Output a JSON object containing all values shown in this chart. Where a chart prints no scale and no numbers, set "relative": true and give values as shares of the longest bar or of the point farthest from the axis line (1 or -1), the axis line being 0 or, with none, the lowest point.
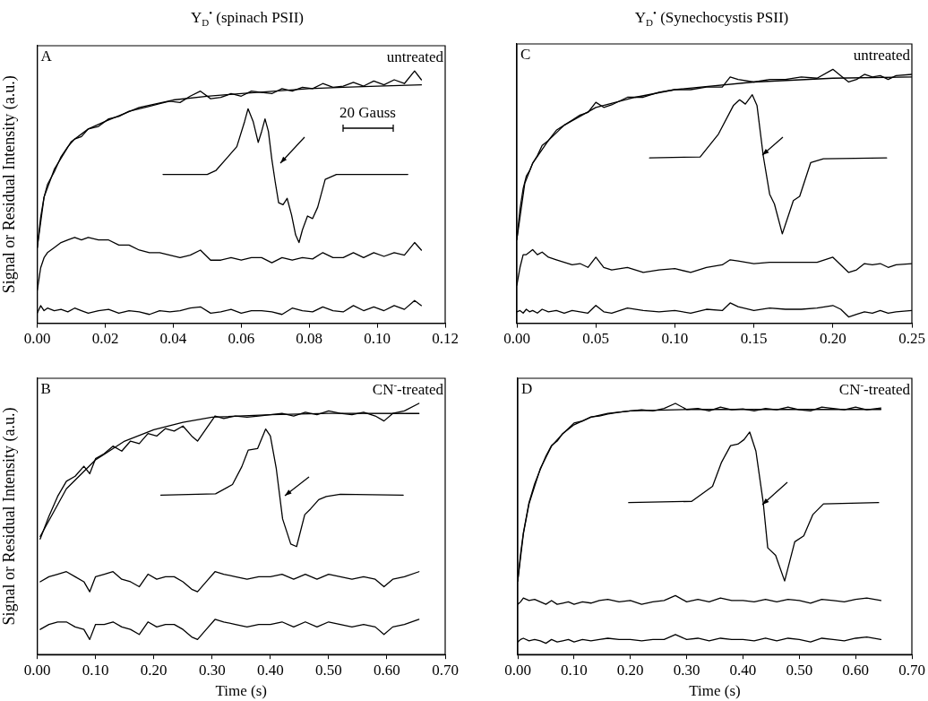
{
  "chart_data": [
    {
      "type": "line",
      "title": "Y$_{D}$$^{•}$ (spinach PSII)",
      "ylabel": "Signal or Residual Intensity (a.u.)",
      "relative": true,
      "marker": "none",
      "xlim": [
        0,
        0.12
      ],
      "xticks": [
        {
          "value": 0,
          "label": "0.00"
        },
        {
          "value": 0.02,
          "label": "0.02"
        },
        {
          "value": 0.04,
          "label": "0.04"
        },
        {
          "value": 0.06,
          "label": "0.06"
        },
        {
          "value": 0.08,
          "label": "0.08"
        },
        {
          "value": 0.1,
          "label": "0.10"
        },
        {
          "value": 0.12,
          "label": "0.12"
        }
      ],
      "annotations": [
        "A",
        "untreated",
        "20 Gauss"
      ],
      "series": [
        {
          "color": "#000000",
          "x": [
            0,
            0.001,
            0.002,
            0.003,
            0.005,
            0.007,
            0.009,
            0.011,
            0.013,
            0.015,
            0.018,
            0.021,
            0.024,
            0.027,
            0.03,
            0.033,
            0.036,
            0.039,
            0.042,
            0.045,
            0.048,
            0.051,
            0.054,
            0.057,
            0.06,
            0.063,
            0.066,
            0.069,
            0.072,
            0.075,
            0.078,
            0.081,
            0.084,
            0.087,
            0.09,
            0.093,
            0.096,
            0.099,
            0.102,
            0.105,
            0.108,
            0.111,
            0.113
          ],
          "values": [
            0.3,
            0.42,
            0.5,
            0.55,
            0.6,
            0.66,
            0.7,
            0.73,
            0.74,
            0.77,
            0.78,
            0.81,
            0.82,
            0.84,
            0.85,
            0.86,
            0.87,
            0.88,
            0.875,
            0.9,
            0.92,
            0.89,
            0.895,
            0.91,
            0.9,
            0.92,
            0.915,
            0.91,
            0.93,
            0.92,
            0.935,
            0.93,
            0.95,
            0.935,
            0.94,
            0.955,
            0.94,
            0.96,
            0.945,
            0.965,
            0.95,
            1.0,
            0.965
          ]
        },
        {
          "color": "#000000",
          "x": [
            0,
            0.002,
            0.005,
            0.01,
            0.015,
            0.02,
            0.03,
            0.04,
            0.05,
            0.06,
            0.07,
            0.08,
            0.09,
            0.1,
            0.113
          ],
          "values": [
            0.3,
            0.5,
            0.61,
            0.72,
            0.77,
            0.8,
            0.855,
            0.885,
            0.9,
            0.91,
            0.92,
            0.93,
            0.935,
            0.94,
            0.945
          ]
        },
        {
          "color": "#000000",
          "x": [
            0,
            0.001,
            0.002,
            0.003,
            0.005,
            0.007,
            0.009,
            0.011,
            0.013,
            0.015,
            0.018,
            0.021,
            0.024,
            0.027,
            0.03,
            0.033,
            0.036,
            0.039,
            0.042,
            0.045,
            0.048,
            0.051,
            0.054,
            0.057,
            0.06,
            0.063,
            0.066,
            0.069,
            0.072,
            0.075,
            0.078,
            0.081,
            0.084,
            0.087,
            0.09,
            0.093,
            0.096,
            0.099,
            0.102,
            0.105,
            0.108,
            0.111,
            0.113
          ],
          "values": [
            0.13,
            0.22,
            0.26,
            0.28,
            0.3,
            0.32,
            0.33,
            0.34,
            0.33,
            0.34,
            0.33,
            0.33,
            0.31,
            0.31,
            0.29,
            0.28,
            0.28,
            0.27,
            0.26,
            0.27,
            0.29,
            0.25,
            0.25,
            0.26,
            0.25,
            0.26,
            0.26,
            0.24,
            0.26,
            0.25,
            0.26,
            0.255,
            0.28,
            0.26,
            0.26,
            0.28,
            0.26,
            0.28,
            0.265,
            0.28,
            0.27,
            0.32,
            0.29
          ]
        },
        {
          "color": "#000000",
          "x": [
            0,
            0.001,
            0.002,
            0.003,
            0.005,
            0.007,
            0.009,
            0.011,
            0.013,
            0.015,
            0.018,
            0.021,
            0.024,
            0.027,
            0.03,
            0.033,
            0.036,
            0.039,
            0.042,
            0.045,
            0.048,
            0.051,
            0.054,
            0.057,
            0.06,
            0.063,
            0.066,
            0.069,
            0.072,
            0.075,
            0.078,
            0.081,
            0.084,
            0.087,
            0.09,
            0.093,
            0.096,
            0.099,
            0.102,
            0.105,
            0.108,
            0.111,
            0.113
          ],
          "values": [
            0.04,
            0.07,
            0.05,
            0.06,
            0.05,
            0.055,
            0.045,
            0.06,
            0.05,
            0.04,
            0.05,
            0.055,
            0.04,
            0.05,
            0.045,
            0.035,
            0.05,
            0.045,
            0.05,
            0.06,
            0.065,
            0.04,
            0.045,
            0.055,
            0.04,
            0.05,
            0.05,
            0.045,
            0.035,
            0.06,
            0.05,
            0.045,
            0.065,
            0.05,
            0.045,
            0.07,
            0.05,
            0.065,
            0.05,
            0.07,
            0.055,
            0.09,
            0.07
          ]
        },
        {
          "color": "#000000",
          "x": [
            0.037,
            0.05,
            0.0526,
            0.056,
            0.0587,
            0.061,
            0.062,
            0.0635,
            0.065,
            0.066,
            0.067,
            0.068,
            0.069,
            0.07,
            0.071,
            0.0723,
            0.0735,
            0.0748,
            0.076,
            0.077,
            0.078,
            0.0795,
            0.081,
            0.0825,
            0.0847,
            0.088,
            0.109
          ],
          "values": [
            0.59,
            0.59,
            0.606,
            0.658,
            0.7,
            0.8,
            0.85,
            0.8,
            0.717,
            0.76,
            0.81,
            0.76,
            0.65,
            0.56,
            0.478,
            0.47,
            0.495,
            0.43,
            0.35,
            0.32,
            0.37,
            0.425,
            0.415,
            0.46,
            0.57,
            0.59,
            0.59
          ]
        }
      ]
    },
    {
      "type": "line",
      "title": "Y$_{D}$$^{•}$ (Synechocystis PSII)",
      "relative": true,
      "marker": "none",
      "xlim": [
        0,
        0.25
      ],
      "xticks": [
        {
          "value": 0,
          "label": "0.00"
        },
        {
          "value": 0.05,
          "label": "0.05"
        },
        {
          "value": 0.1,
          "label": "0.10"
        },
        {
          "value": 0.15,
          "label": "0.15"
        },
        {
          "value": 0.2,
          "label": "0.20"
        },
        {
          "value": 0.25,
          "label": "0.25"
        }
      ],
      "annotations": [
        "C",
        "untreated"
      ],
      "series": [
        {
          "color": "#000000",
          "x": [
            0,
            0.002,
            0.004,
            0.006,
            0.008,
            0.01,
            0.013,
            0.016,
            0.02,
            0.025,
            0.03,
            0.035,
            0.04,
            0.045,
            0.05,
            0.055,
            0.06,
            0.07,
            0.08,
            0.09,
            0.1,
            0.11,
            0.12,
            0.13,
            0.135,
            0.14,
            0.15,
            0.16,
            0.17,
            0.18,
            0.19,
            0.2,
            0.205,
            0.21,
            0.215,
            0.22,
            0.225,
            0.23,
            0.235,
            0.24,
            0.25
          ],
          "values": [
            0.33,
            0.45,
            0.53,
            0.58,
            0.6,
            0.63,
            0.66,
            0.7,
            0.72,
            0.76,
            0.78,
            0.8,
            0.82,
            0.83,
            0.87,
            0.85,
            0.86,
            0.89,
            0.89,
            0.91,
            0.92,
            0.92,
            0.93,
            0.93,
            0.97,
            0.96,
            0.95,
            0.96,
            0.96,
            0.97,
            0.965,
            1.0,
            0.975,
            0.95,
            0.96,
            0.98,
            0.97,
            0.975,
            0.96,
            0.975,
            0.98
          ]
        },
        {
          "color": "#000000",
          "x": [
            0,
            0.005,
            0.01,
            0.02,
            0.03,
            0.05,
            0.075,
            0.1,
            0.15,
            0.2,
            0.25
          ],
          "values": [
            0.33,
            0.55,
            0.63,
            0.72,
            0.78,
            0.85,
            0.89,
            0.92,
            0.95,
            0.965,
            0.97
          ]
        },
        {
          "color": "#000000",
          "x": [
            0,
            0.002,
            0.004,
            0.006,
            0.008,
            0.01,
            0.013,
            0.016,
            0.02,
            0.025,
            0.03,
            0.035,
            0.04,
            0.045,
            0.05,
            0.055,
            0.06,
            0.07,
            0.08,
            0.09,
            0.1,
            0.11,
            0.12,
            0.13,
            0.135,
            0.14,
            0.15,
            0.16,
            0.17,
            0.18,
            0.19,
            0.2,
            0.205,
            0.21,
            0.215,
            0.22,
            0.225,
            0.23,
            0.235,
            0.24,
            0.25
          ],
          "values": [
            0.15,
            0.22,
            0.27,
            0.27,
            0.28,
            0.29,
            0.27,
            0.28,
            0.26,
            0.25,
            0.24,
            0.23,
            0.235,
            0.22,
            0.26,
            0.22,
            0.21,
            0.22,
            0.2,
            0.21,
            0.215,
            0.2,
            0.22,
            0.23,
            0.25,
            0.245,
            0.235,
            0.24,
            0.24,
            0.24,
            0.24,
            0.26,
            0.23,
            0.2,
            0.21,
            0.235,
            0.23,
            0.235,
            0.22,
            0.23,
            0.235
          ]
        },
        {
          "color": "#000000",
          "x": [
            0,
            0.002,
            0.004,
            0.006,
            0.008,
            0.01,
            0.013,
            0.016,
            0.02,
            0.025,
            0.03,
            0.035,
            0.04,
            0.045,
            0.05,
            0.055,
            0.06,
            0.07,
            0.08,
            0.09,
            0.1,
            0.11,
            0.12,
            0.13,
            0.135,
            0.14,
            0.15,
            0.16,
            0.17,
            0.18,
            0.19,
            0.2,
            0.205,
            0.21,
            0.215,
            0.22,
            0.225,
            0.23,
            0.235,
            0.24,
            0.25
          ],
          "values": [
            0.045,
            0.05,
            0.04,
            0.055,
            0.045,
            0.05,
            0.04,
            0.055,
            0.045,
            0.05,
            0.04,
            0.05,
            0.045,
            0.04,
            0.07,
            0.045,
            0.04,
            0.06,
            0.05,
            0.045,
            0.05,
            0.04,
            0.055,
            0.05,
            0.08,
            0.065,
            0.05,
            0.06,
            0.055,
            0.055,
            0.06,
            0.07,
            0.055,
            0.025,
            0.035,
            0.045,
            0.04,
            0.05,
            0.04,
            0.045,
            0.05
          ]
        },
        {
          "color": "#000000",
          "x": [
            0.084,
            0.116,
            0.1276,
            0.137,
            0.141,
            0.1446,
            0.149,
            0.152,
            0.156,
            0.16,
            0.163,
            0.168,
            0.175,
            0.179,
            0.186,
            0.194,
            0.234
          ],
          "values": [
            0.651,
            0.655,
            0.745,
            0.857,
            0.88,
            0.863,
            0.9,
            0.857,
            0.657,
            0.508,
            0.47,
            0.352,
            0.483,
            0.5,
            0.633,
            0.648,
            0.651
          ]
        }
      ]
    },
    {
      "type": "line",
      "ylabel": "Signal or Residual Intensity (a.u.)",
      "xlabel": "Time (s)",
      "relative": true,
      "marker": "none",
      "xlim": [
        0,
        0.7
      ],
      "xticks": [
        {
          "value": 0,
          "label": "0.00"
        },
        {
          "value": 0.1,
          "label": "0.10"
        },
        {
          "value": 0.2,
          "label": "0.20"
        },
        {
          "value": 0.3,
          "label": "0.30"
        },
        {
          "value": 0.4,
          "label": "0.40"
        },
        {
          "value": 0.5,
          "label": "0.50"
        },
        {
          "value": 0.6,
          "label": "0.60"
        },
        {
          "value": 0.7,
          "label": "0.70"
        }
      ],
      "annotations": [
        "B",
        "CN$^{-}$-treated"
      ],
      "series": [
        {
          "color": "#000000",
          "x": [
            0.005,
            0.02,
            0.035,
            0.05,
            0.065,
            0.08,
            0.09,
            0.1,
            0.115,
            0.13,
            0.145,
            0.16,
            0.175,
            0.19,
            0.205,
            0.22,
            0.235,
            0.25,
            0.265,
            0.275,
            0.29,
            0.305,
            0.32,
            0.34,
            0.36,
            0.38,
            0.4,
            0.42,
            0.44,
            0.46,
            0.48,
            0.5,
            0.52,
            0.54,
            0.56,
            0.58,
            0.595,
            0.61,
            0.63,
            0.655
          ],
          "values": [
            0.46,
            0.55,
            0.63,
            0.69,
            0.71,
            0.75,
            0.72,
            0.78,
            0.8,
            0.83,
            0.81,
            0.85,
            0.84,
            0.88,
            0.87,
            0.9,
            0.89,
            0.91,
            0.87,
            0.85,
            0.9,
            0.95,
            0.94,
            0.95,
            0.945,
            0.95,
            0.955,
            0.96,
            0.95,
            0.965,
            0.955,
            0.97,
            0.96,
            0.955,
            0.965,
            0.95,
            0.93,
            0.96,
            0.97,
            1.0
          ]
        },
        {
          "color": "#000000",
          "x": [
            0.005,
            0.05,
            0.1,
            0.15,
            0.2,
            0.25,
            0.3,
            0.4,
            0.5,
            0.655
          ],
          "values": [
            0.47,
            0.66,
            0.775,
            0.85,
            0.895,
            0.925,
            0.945,
            0.955,
            0.96,
            0.96
          ]
        },
        {
          "color": "#000000",
          "x": [
            0.005,
            0.02,
            0.035,
            0.05,
            0.065,
            0.08,
            0.09,
            0.1,
            0.115,
            0.13,
            0.145,
            0.16,
            0.175,
            0.19,
            0.205,
            0.22,
            0.235,
            0.25,
            0.265,
            0.275,
            0.29,
            0.305,
            0.32,
            0.34,
            0.36,
            0.38,
            0.4,
            0.42,
            0.44,
            0.46,
            0.48,
            0.5,
            0.52,
            0.54,
            0.56,
            0.58,
            0.595,
            0.61,
            0.63,
            0.655
          ],
          "values": [
            0.29,
            0.31,
            0.32,
            0.33,
            0.31,
            0.29,
            0.25,
            0.31,
            0.32,
            0.33,
            0.3,
            0.29,
            0.27,
            0.32,
            0.3,
            0.31,
            0.31,
            0.29,
            0.26,
            0.25,
            0.29,
            0.33,
            0.32,
            0.31,
            0.3,
            0.31,
            0.31,
            0.32,
            0.3,
            0.32,
            0.3,
            0.32,
            0.31,
            0.3,
            0.31,
            0.3,
            0.27,
            0.3,
            0.31,
            0.33
          ]
        },
        {
          "color": "#000000",
          "x": [
            0.005,
            0.02,
            0.035,
            0.05,
            0.065,
            0.08,
            0.09,
            0.1,
            0.115,
            0.13,
            0.145,
            0.16,
            0.175,
            0.19,
            0.205,
            0.22,
            0.235,
            0.25,
            0.265,
            0.275,
            0.29,
            0.305,
            0.32,
            0.34,
            0.36,
            0.38,
            0.4,
            0.42,
            0.44,
            0.46,
            0.48,
            0.5,
            0.52,
            0.54,
            0.56,
            0.58,
            0.595,
            0.61,
            0.63,
            0.655
          ],
          "values": [
            0.1,
            0.12,
            0.13,
            0.13,
            0.11,
            0.1,
            0.06,
            0.12,
            0.12,
            0.13,
            0.11,
            0.1,
            0.08,
            0.13,
            0.11,
            0.12,
            0.12,
            0.1,
            0.07,
            0.06,
            0.1,
            0.14,
            0.13,
            0.12,
            0.11,
            0.12,
            0.12,
            0.13,
            0.11,
            0.13,
            0.11,
            0.13,
            0.12,
            0.11,
            0.12,
            0.11,
            0.08,
            0.11,
            0.12,
            0.14
          ]
        },
        {
          "color": "#000000",
          "x": [
            0.212,
            0.306,
            0.335,
            0.351,
            0.362,
            0.378,
            0.392,
            0.4,
            0.41,
            0.421,
            0.435,
            0.445,
            0.459,
            0.469,
            0.483,
            0.496,
            0.52,
            0.628
          ],
          "values": [
            0.635,
            0.64,
            0.677,
            0.748,
            0.814,
            0.82,
            0.898,
            0.87,
            0.743,
            0.54,
            0.44,
            0.43,
            0.557,
            0.58,
            0.617,
            0.629,
            0.638,
            0.635
          ]
        }
      ]
    },
    {
      "type": "line",
      "xlabel": "Time (s)",
      "relative": true,
      "marker": "none",
      "xlim": [
        0,
        0.7
      ],
      "xticks": [
        {
          "value": 0,
          "label": "0.00"
        },
        {
          "value": 0.1,
          "label": "0.10"
        },
        {
          "value": 0.2,
          "label": "0.20"
        },
        {
          "value": 0.3,
          "label": "0.30"
        },
        {
          "value": 0.4,
          "label": "0.40"
        },
        {
          "value": 0.5,
          "label": "0.50"
        },
        {
          "value": 0.6,
          "label": "0.60"
        },
        {
          "value": 0.7,
          "label": "0.70"
        }
      ],
      "annotations": [
        "D",
        "CN$^{-}$-treated"
      ],
      "series": [
        {
          "color": "#000000",
          "x": [
            0,
            0.005,
            0.01,
            0.02,
            0.03,
            0.04,
            0.05,
            0.06,
            0.07,
            0.08,
            0.09,
            0.1,
            0.115,
            0.13,
            0.145,
            0.16,
            0.18,
            0.2,
            0.22,
            0.24,
            0.26,
            0.28,
            0.3,
            0.32,
            0.34,
            0.36,
            0.38,
            0.4,
            0.42,
            0.44,
            0.46,
            0.48,
            0.5,
            0.52,
            0.54,
            0.56,
            0.58,
            0.6,
            0.62,
            0.645
          ],
          "values": [
            0.293,
            0.4,
            0.485,
            0.605,
            0.68,
            0.737,
            0.79,
            0.832,
            0.85,
            0.88,
            0.9,
            0.922,
            0.93,
            0.946,
            0.95,
            0.958,
            0.965,
            0.97,
            0.975,
            0.97,
            0.98,
            1.0,
            0.976,
            0.98,
            0.97,
            0.985,
            0.975,
            0.978,
            0.97,
            0.98,
            0.975,
            0.985,
            0.975,
            0.97,
            0.985,
            0.98,
            0.975,
            0.985,
            0.975,
            0.982
          ]
        },
        {
          "color": "#000000",
          "x": [
            0,
            0.01,
            0.02,
            0.04,
            0.06,
            0.08,
            0.1,
            0.13,
            0.16,
            0.2,
            0.3,
            0.645
          ],
          "values": [
            0.293,
            0.48,
            0.6,
            0.74,
            0.83,
            0.88,
            0.915,
            0.945,
            0.96,
            0.97,
            0.976,
            0.976
          ]
        },
        {
          "color": "#000000",
          "x": [
            0,
            0.005,
            0.01,
            0.02,
            0.03,
            0.04,
            0.05,
            0.06,
            0.07,
            0.08,
            0.09,
            0.1,
            0.115,
            0.13,
            0.145,
            0.16,
            0.18,
            0.2,
            0.22,
            0.24,
            0.26,
            0.28,
            0.3,
            0.32,
            0.34,
            0.36,
            0.38,
            0.4,
            0.42,
            0.44,
            0.46,
            0.48,
            0.5,
            0.52,
            0.54,
            0.56,
            0.58,
            0.6,
            0.62,
            0.645
          ],
          "values": [
            0.2,
            0.21,
            0.225,
            0.215,
            0.22,
            0.21,
            0.2,
            0.215,
            0.2,
            0.205,
            0.21,
            0.2,
            0.21,
            0.205,
            0.215,
            0.22,
            0.21,
            0.215,
            0.2,
            0.21,
            0.215,
            0.235,
            0.21,
            0.22,
            0.21,
            0.225,
            0.215,
            0.215,
            0.21,
            0.22,
            0.21,
            0.22,
            0.215,
            0.205,
            0.22,
            0.215,
            0.21,
            0.22,
            0.225,
            0.215
          ]
        },
        {
          "color": "#000000",
          "x": [
            0,
            0.005,
            0.01,
            0.02,
            0.03,
            0.04,
            0.05,
            0.06,
            0.07,
            0.08,
            0.09,
            0.1,
            0.115,
            0.13,
            0.145,
            0.16,
            0.18,
            0.2,
            0.22,
            0.24,
            0.26,
            0.28,
            0.3,
            0.32,
            0.34,
            0.36,
            0.38,
            0.4,
            0.42,
            0.44,
            0.46,
            0.48,
            0.5,
            0.52,
            0.54,
            0.56,
            0.58,
            0.6,
            0.62,
            0.645
          ],
          "values": [
            0.05,
            0.06,
            0.065,
            0.055,
            0.06,
            0.055,
            0.045,
            0.06,
            0.05,
            0.055,
            0.06,
            0.05,
            0.06,
            0.055,
            0.06,
            0.065,
            0.06,
            0.06,
            0.055,
            0.06,
            0.06,
            0.08,
            0.06,
            0.065,
            0.055,
            0.065,
            0.06,
            0.06,
            0.055,
            0.065,
            0.055,
            0.065,
            0.06,
            0.05,
            0.065,
            0.06,
            0.055,
            0.065,
            0.07,
            0.06
          ]
        },
        {
          "color": "#000000",
          "x": [
            0.197,
            0.309,
            0.346,
            0.362,
            0.378,
            0.391,
            0.402,
            0.412,
            0.423,
            0.436,
            0.444,
            0.458,
            0.474,
            0.492,
            0.508,
            0.524,
            0.543,
            0.641
          ],
          "values": [
            0.605,
            0.61,
            0.67,
            0.766,
            0.832,
            0.838,
            0.856,
            0.886,
            0.81,
            0.605,
            0.425,
            0.395,
            0.293,
            0.449,
            0.473,
            0.557,
            0.6,
            0.605
          ]
        }
      ]
    }
  ]
}
